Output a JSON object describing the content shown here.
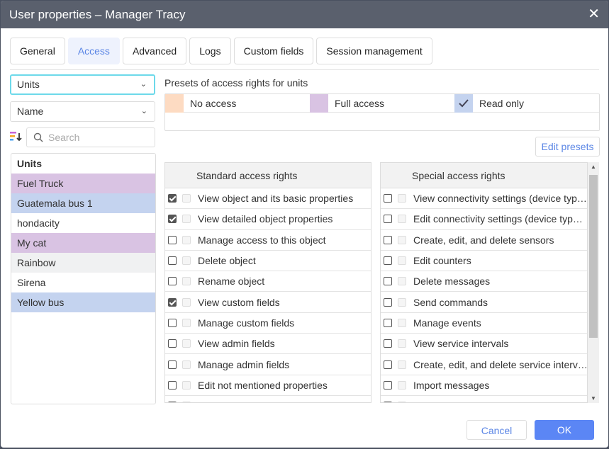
{
  "window": {
    "title": "User properties – Manager Tracy",
    "close": "✕"
  },
  "tabs": [
    {
      "label": "General"
    },
    {
      "label": "Access",
      "active": true
    },
    {
      "label": "Advanced"
    },
    {
      "label": "Logs"
    },
    {
      "label": "Custom fields"
    },
    {
      "label": "Session management"
    }
  ],
  "left": {
    "type_select": "Units",
    "sort_select": "Name",
    "search_placeholder": "Search",
    "list_header": "Units",
    "items": [
      {
        "label": "Fuel Truck",
        "color": "#d9c3e3"
      },
      {
        "label": "Guatemala bus 1",
        "color": "#c4d3ef"
      },
      {
        "label": "hondacity",
        "color": "#ffffff"
      },
      {
        "label": "My cat",
        "color": "#d9c3e3"
      },
      {
        "label": "Rainbow",
        "color": "#f0f1f2"
      },
      {
        "label": "Sirena",
        "color": "#ffffff"
      },
      {
        "label": "Yellow bus",
        "color": "#c4d3ef"
      }
    ]
  },
  "presets": {
    "label": "Presets of access rights for units",
    "items": [
      {
        "label": "No access",
        "color": "#fddbc2"
      },
      {
        "label": "Full access",
        "color": "#d9c3e3"
      },
      {
        "label": "Read only",
        "color": "#c4d3ef",
        "checked": true
      }
    ],
    "edit_button": "Edit presets"
  },
  "standard": {
    "header": "Standard access rights",
    "rows": [
      {
        "label": "View object and its basic properties",
        "checked": true
      },
      {
        "label": "View detailed object properties",
        "checked": true
      },
      {
        "label": "Manage access to this object",
        "checked": false
      },
      {
        "label": "Delete object",
        "checked": false
      },
      {
        "label": "Rename object",
        "checked": false
      },
      {
        "label": "View custom fields",
        "checked": true
      },
      {
        "label": "Manage custom fields",
        "checked": false
      },
      {
        "label": "View admin fields",
        "checked": false
      },
      {
        "label": "Manage admin fields",
        "checked": false
      },
      {
        "label": "Edit not mentioned properties",
        "checked": false
      }
    ]
  },
  "special": {
    "header": "Special access rights",
    "rows": [
      {
        "label": "View connectivity settings (device typ…",
        "checked": false
      },
      {
        "label": "Edit connectivity settings (device typ…",
        "checked": false
      },
      {
        "label": "Create, edit, and delete sensors",
        "checked": false
      },
      {
        "label": "Edit counters",
        "checked": false
      },
      {
        "label": "Delete messages",
        "checked": false
      },
      {
        "label": "Send commands",
        "checked": false
      },
      {
        "label": "Manage events",
        "checked": false
      },
      {
        "label": "View service intervals",
        "checked": false
      },
      {
        "label": "Create, edit, and delete service interv…",
        "checked": false
      },
      {
        "label": "Import messages",
        "checked": false
      }
    ]
  },
  "footer": {
    "cancel": "Cancel",
    "ok": "OK"
  }
}
